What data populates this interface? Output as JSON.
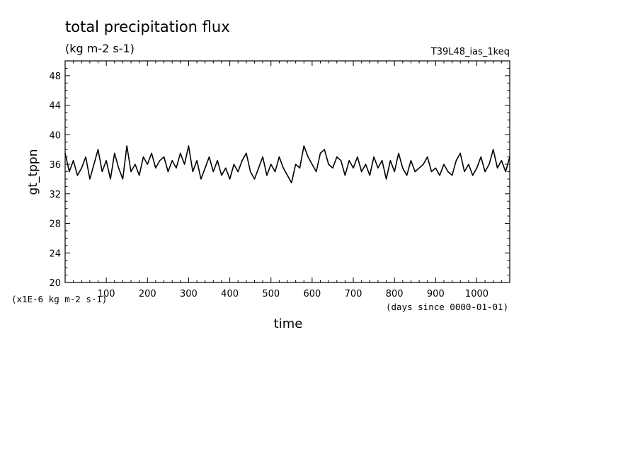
{
  "chart_data": {
    "type": "line",
    "title": "total precipitation flux",
    "subtitle": "(kg m-2 s-1)",
    "run_label": "T39L48_ias_1keq",
    "xlabel": "time",
    "x_unit_note": "(days since 0000-01-01)",
    "ylabel": "gt_tppn",
    "y_unit_note": "(x1E-6 kg m-2 s-1)",
    "xlim": [
      0,
      1080
    ],
    "ylim": [
      20,
      50
    ],
    "xticks": [
      100,
      200,
      300,
      400,
      500,
      600,
      700,
      800,
      900,
      1000
    ],
    "xtick_labels": [
      "100",
      "200",
      "300",
      "400",
      "500",
      "600",
      "700",
      "800",
      "900",
      "1000"
    ],
    "yticks": [
      20,
      24,
      28,
      32,
      36,
      40,
      44,
      48
    ],
    "ytick_labels": [
      "20",
      "24",
      "28",
      "32",
      "36",
      "40",
      "44",
      "48"
    ],
    "grid": false,
    "series": [
      {
        "color": "#000000",
        "x": [
          0,
          10,
          20,
          30,
          40,
          50,
          60,
          70,
          80,
          90,
          100,
          110,
          120,
          130,
          140,
          150,
          160,
          170,
          180,
          190,
          200,
          210,
          220,
          230,
          240,
          250,
          260,
          270,
          280,
          290,
          300,
          310,
          320,
          330,
          340,
          350,
          360,
          370,
          380,
          390,
          400,
          410,
          420,
          430,
          440,
          450,
          460,
          470,
          480,
          490,
          500,
          510,
          520,
          530,
          540,
          550,
          560,
          570,
          580,
          590,
          600,
          610,
          620,
          630,
          640,
          650,
          660,
          670,
          680,
          690,
          700,
          710,
          720,
          730,
          740,
          750,
          760,
          770,
          780,
          790,
          800,
          810,
          820,
          830,
          840,
          850,
          860,
          870,
          880,
          890,
          900,
          910,
          920,
          930,
          940,
          950,
          960,
          970,
          980,
          990,
          1000,
          1010,
          1020,
          1030,
          1040,
          1050,
          1060,
          1070,
          1080
        ],
        "values": [
          37.5,
          35.0,
          36.5,
          34.5,
          35.5,
          37.0,
          34.0,
          36.0,
          38.0,
          35.0,
          36.5,
          34.0,
          37.5,
          35.5,
          34.0,
          38.5,
          35.0,
          36.0,
          34.5,
          37.0,
          36.0,
          37.5,
          35.5,
          36.5,
          37.0,
          35.0,
          36.5,
          35.5,
          37.5,
          36.0,
          38.5,
          35.0,
          36.5,
          34.0,
          35.5,
          37.0,
          35.0,
          36.5,
          34.5,
          35.5,
          34.0,
          36.0,
          35.0,
          36.5,
          37.5,
          35.0,
          34.0,
          35.5,
          37.0,
          34.5,
          36.0,
          35.0,
          37.0,
          35.5,
          34.5,
          33.5,
          36.0,
          35.5,
          38.5,
          37.0,
          36.0,
          35.0,
          37.5,
          38.0,
          36.0,
          35.5,
          37.0,
          36.5,
          34.5,
          36.5,
          35.5,
          37.0,
          35.0,
          36.0,
          34.5,
          37.0,
          35.5,
          36.5,
          34.0,
          36.5,
          35.0,
          37.5,
          35.5,
          34.5,
          36.5,
          35.0,
          35.5,
          36.0,
          37.0,
          35.0,
          35.5,
          34.5,
          36.0,
          35.0,
          34.5,
          36.5,
          37.5,
          35.0,
          36.0,
          34.5,
          35.5,
          37.0,
          35.0,
          36.0,
          38.0,
          35.5,
          36.5,
          35.0,
          37.0
        ]
      }
    ]
  }
}
